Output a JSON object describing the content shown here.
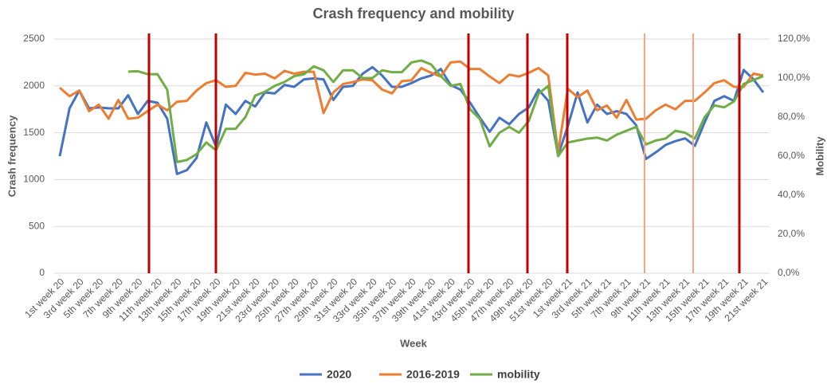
{
  "chart_data": {
    "type": "line",
    "title": "Crash frequency and mobility",
    "x_label": "Week",
    "y_label": "Crash frequency",
    "y2_label": "Mobility",
    "categories": [
      "1st week 20",
      null,
      "3rd week 20",
      null,
      "5th week 20",
      null,
      "7th week 20",
      null,
      "9th week 20",
      null,
      "11th week 20",
      null,
      "13th week 20",
      null,
      "15th week 20",
      null,
      "17th week 20",
      null,
      "19th week 20",
      null,
      "21st week 20",
      null,
      "23rd week 20",
      null,
      "25th week 20",
      null,
      "27th week 20",
      null,
      "29th week 20",
      null,
      "31st week 20",
      null,
      "33rd week 20",
      null,
      "35th week 20",
      null,
      "37th week 20",
      null,
      "39th week 20",
      null,
      "41st week 20",
      null,
      "43rd week 20",
      null,
      "45th week 20",
      null,
      "47th week 20",
      null,
      "49th week 20",
      null,
      "51st week 20",
      null,
      "1st week 21",
      null,
      "3rd week 21",
      null,
      "5th week 21",
      null,
      "7th week 21",
      null,
      "9th week 21",
      null,
      "11th week 21",
      null,
      "13th week 21",
      null,
      "15th week 21",
      null,
      "17th week 21",
      null,
      "19th week 21",
      null,
      "21st week 21"
    ],
    "series": [
      {
        "name": "2020",
        "color": "#4472c4",
        "values": [
          1250,
          1760,
          1950,
          1760,
          1770,
          1760,
          1760,
          1900,
          1700,
          1840,
          1820,
          1650,
          1060,
          1100,
          1230,
          1610,
          1350,
          1800,
          1700,
          1840,
          1780,
          1930,
          1920,
          2010,
          1990,
          2070,
          2080,
          2070,
          1850,
          1990,
          2000,
          2130,
          2200,
          2110,
          1990,
          1990,
          2030,
          2080,
          2110,
          2180,
          2010,
          1960,
          1820,
          1660,
          1510,
          1660,
          1590,
          1700,
          1770,
          1960,
          1840,
          1260,
          1570,
          1930,
          1610,
          1800,
          1700,
          1730,
          1700,
          1580,
          1220,
          1290,
          1370,
          1410,
          1440,
          1360,
          1610,
          1840,
          1890,
          1840,
          2170,
          2070,
          1930
        ]
      },
      {
        "name": "2016-2019",
        "color": "#ed7d31",
        "values": [
          1980,
          1890,
          1950,
          1730,
          1800,
          1650,
          1850,
          1650,
          1660,
          1730,
          1800,
          1740,
          1830,
          1840,
          1950,
          2030,
          2060,
          1990,
          2000,
          2140,
          2120,
          2130,
          2080,
          2160,
          2130,
          2150,
          2150,
          1710,
          1930,
          2020,
          2040,
          2070,
          2060,
          1960,
          1920,
          2050,
          2060,
          2190,
          2140,
          2100,
          2250,
          2260,
          2180,
          2180,
          2100,
          2030,
          2120,
          2100,
          2140,
          2190,
          2110,
          1290,
          1970,
          1880,
          1950,
          1740,
          1790,
          1660,
          1850,
          1640,
          1650,
          1740,
          1800,
          1750,
          1840,
          1840,
          1930,
          2030,
          2060,
          1990,
          1990,
          2130,
          2110
        ]
      },
      {
        "name": "mobility",
        "color": "#70ad47",
        "axis": "y2",
        "values": [
          null,
          null,
          null,
          null,
          null,
          null,
          null,
          103.3,
          103.5,
          102,
          102,
          94,
          57,
          58,
          61,
          67,
          63,
          74,
          74,
          80,
          91,
          93,
          96,
          98,
          101,
          102,
          106,
          104,
          98,
          104,
          104,
          100,
          100,
          104,
          103,
          103,
          108,
          109,
          107,
          101,
          96,
          97,
          84,
          79,
          65,
          72,
          75,
          72,
          78,
          92,
          96,
          60,
          67,
          68,
          69,
          69.5,
          68,
          71,
          73,
          75,
          66,
          68,
          69,
          73,
          72,
          69,
          80,
          86,
          85,
          88,
          97,
          99,
          101
        ]
      }
    ],
    "ylim": [
      0,
      2500
    ],
    "yticks": [
      0,
      500,
      1000,
      1500,
      2000,
      2500
    ],
    "y2lim": [
      0,
      120
    ],
    "y2ticks": [
      {
        "value": 0,
        "label": "0,0%"
      },
      {
        "value": 20,
        "label": "20,0%"
      },
      {
        "value": 40,
        "label": "40,0%"
      },
      {
        "value": 60,
        "label": "60,0%"
      },
      {
        "value": 80,
        "label": "80,0%"
      },
      {
        "value": 100,
        "label": "100,0%"
      },
      {
        "value": 120,
        "label": "120,0%"
      }
    ],
    "grid": true,
    "legend": "bottom"
  }
}
